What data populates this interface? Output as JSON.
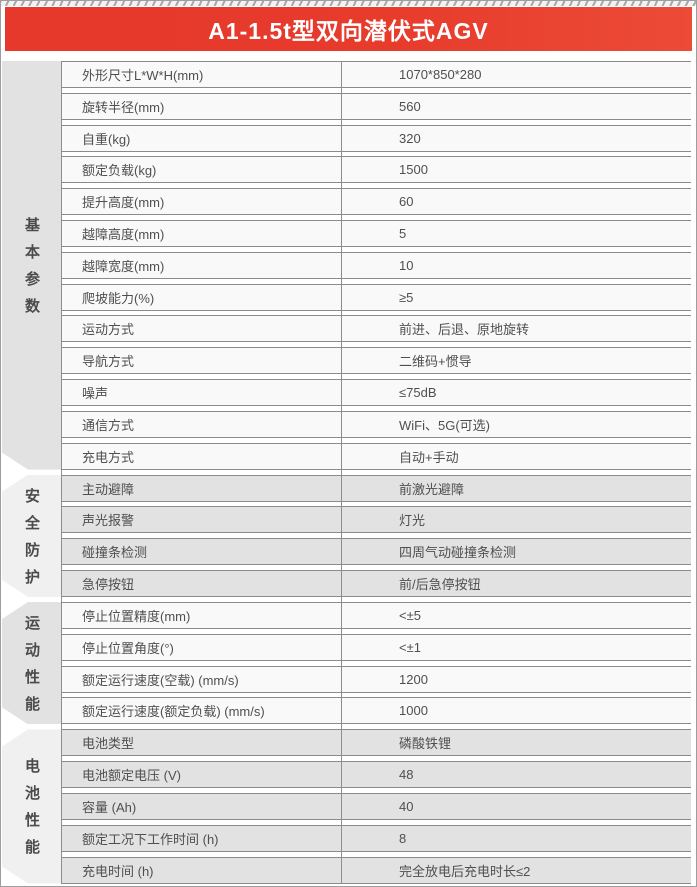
{
  "header": {
    "title": "A1-1.5t型双向潜伏式AGV",
    "accent_color": "#e73b2c"
  },
  "table": {
    "sections": [
      {
        "title": "基本参数",
        "rows": [
          {
            "label": "外形尺寸L*W*H(mm)",
            "value": "1070*850*280"
          },
          {
            "label": "旋转半径(mm)",
            "value": "560"
          },
          {
            "label": "自重(kg)",
            "value": "320"
          },
          {
            "label": "额定负载(kg)",
            "value": "1500"
          },
          {
            "label": "提升高度(mm)",
            "value": "60"
          },
          {
            "label": "越障高度(mm)",
            "value": "5"
          },
          {
            "label": "越障宽度(mm)",
            "value": "10"
          },
          {
            "label": "爬坡能力(%)",
            "value": "≥5"
          },
          {
            "label": "运动方式",
            "value": "前进、后退、原地旋转"
          },
          {
            "label": "导航方式",
            "value": "二维码+惯导"
          },
          {
            "label": "噪声",
            "value": "≤75dB"
          },
          {
            "label": "通信方式",
            "value": "WiFi、5G(可选)"
          },
          {
            "label": "充电方式",
            "value": "自动+手动"
          }
        ]
      },
      {
        "title": "安全防护",
        "rows": [
          {
            "label": "主动避障",
            "value": "前激光避障"
          },
          {
            "label": "声光报警",
            "value": "灯光"
          },
          {
            "label": "碰撞条检测",
            "value": "四周气动碰撞条检测"
          },
          {
            "label": "急停按钮",
            "value": "前/后急停按钮"
          }
        ]
      },
      {
        "title": "运动性能",
        "rows": [
          {
            "label": "停止位置精度(mm)",
            "value": "<±5"
          },
          {
            "label": "停止位置角度(°)",
            "value": "<±1"
          },
          {
            "label": "额定运行速度(空载) (mm/s)",
            "value": "1200"
          },
          {
            "label": "额定运行速度(额定负载) (mm/s)",
            "value": "1000"
          }
        ]
      },
      {
        "title": "电池性能",
        "rows": [
          {
            "label": "电池类型",
            "value": "磷酸铁锂"
          },
          {
            "label": "电池额定电压 (V)",
            "value": "48"
          },
          {
            "label": "容量 (Ah)",
            "value": "40"
          },
          {
            "label": "额定工况下工作时间 (h)",
            "value": "8"
          },
          {
            "label": "充电时间 (h)",
            "value": "完全放电后充电时长≤2"
          }
        ]
      }
    ]
  }
}
